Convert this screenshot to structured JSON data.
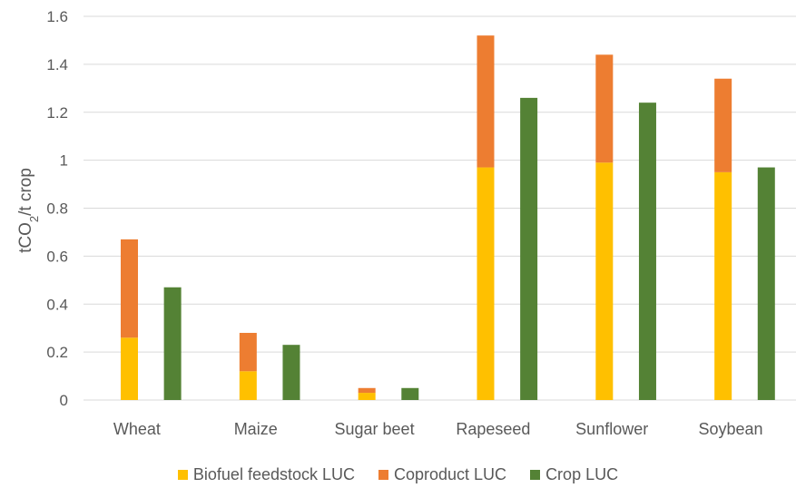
{
  "chart_data": {
    "type": "bar",
    "categories": [
      "Wheat",
      "Maize",
      "Sugar beet",
      "Rapeseed",
      "Sunflower",
      "Soybean"
    ],
    "series": [
      {
        "name": "Biofuel feedstock LUC",
        "color": "#FFC000",
        "stack": "biofuel",
        "values": [
          0.26,
          0.12,
          0.03,
          0.97,
          0.99,
          0.95
        ]
      },
      {
        "name": "Coproduct LUC",
        "color": "#ED7D31",
        "stack": "biofuel",
        "values": [
          0.41,
          0.16,
          0.02,
          0.55,
          0.45,
          0.39
        ]
      },
      {
        "name": "Crop LUC",
        "color": "#548235",
        "stack": "crop",
        "values": [
          0.47,
          0.23,
          0.05,
          1.26,
          1.24,
          0.97
        ]
      }
    ],
    "ylabel_main": "tCO",
    "ylabel_sub": "2",
    "ylabel_rest": "/t crop",
    "ylim": [
      0,
      1.6
    ],
    "yticks": [
      "0",
      "0.2",
      "0.4",
      "0.6",
      "0.8",
      "1",
      "1.2",
      "1.4",
      "1.6"
    ],
    "ytick_values": [
      0,
      0.2,
      0.4,
      0.6,
      0.8,
      1,
      1.2,
      1.4,
      1.6
    ],
    "grid": true,
    "legend_position": "bottom"
  }
}
